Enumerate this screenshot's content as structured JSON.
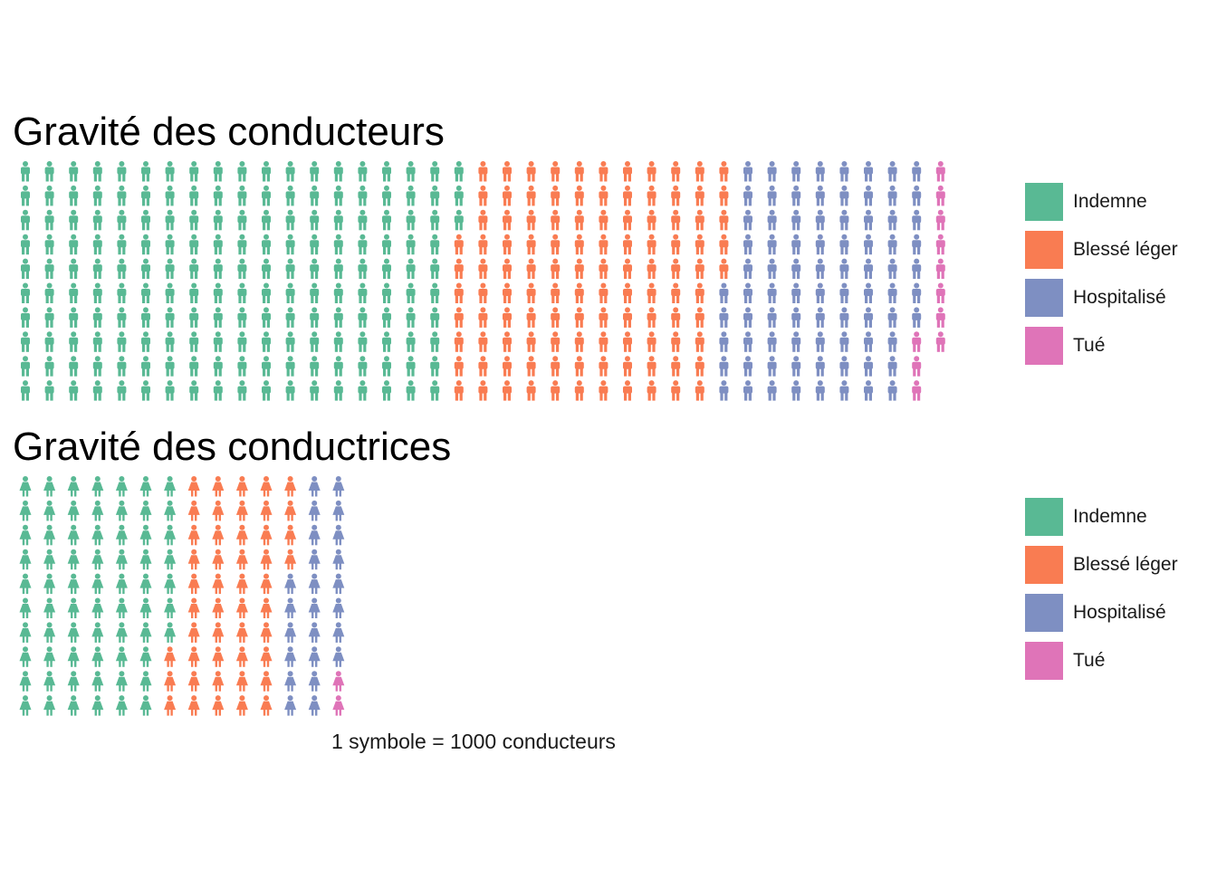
{
  "footnote": "1 symbole = 1000 conducteurs",
  "colors": {
    "Indemne": "#59b994",
    "Blessé léger": "#f97c52",
    "Hospitalisé": "#7e8fc2",
    "Tué": "#df74b8"
  },
  "chart_data": [
    {
      "type": "waffle",
      "title": "Gravité des conducteurs",
      "icon": "male-person-icon",
      "rows": 10,
      "categories": [
        "Indemne",
        "Blessé léger",
        "Hospitalisé",
        "Tué"
      ],
      "values": [
        183,
        112,
        82,
        11
      ],
      "legend": {
        "position": "right",
        "entries": [
          "Indemne",
          "Blessé léger",
          "Hospitalisé",
          "Tué"
        ]
      }
    },
    {
      "type": "waffle",
      "title": "Gravité des conductrices",
      "icon": "female-person-icon",
      "rows": 10,
      "categories": [
        "Indemne",
        "Blessé léger",
        "Hospitalisé",
        "Tué"
      ],
      "values": [
        67,
        47,
        24,
        2
      ],
      "legend": {
        "position": "right",
        "entries": [
          "Indemne",
          "Blessé léger",
          "Hospitalisé",
          "Tué"
        ]
      }
    }
  ]
}
